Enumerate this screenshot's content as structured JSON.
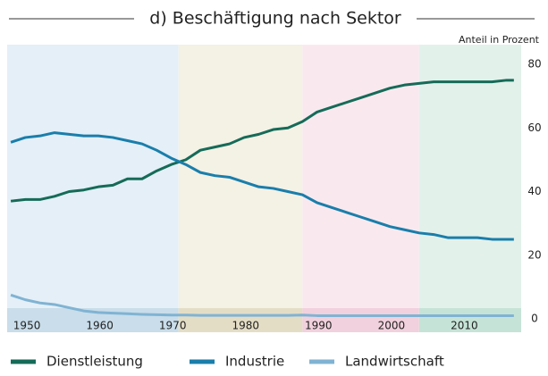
{
  "chart_data": {
    "type": "line",
    "title": "d) Beschäftigung nach Sektor",
    "y_axis_label": "Anteil in Prozent",
    "x": [
      1950,
      1952,
      1954,
      1956,
      1958,
      1960,
      1962,
      1964,
      1966,
      1968,
      1970,
      1972,
      1974,
      1976,
      1978,
      1980,
      1982,
      1984,
      1986,
      1988,
      1990,
      1992,
      1994,
      1996,
      1998,
      2000,
      2002,
      2004,
      2006,
      2008,
      2010,
      2012,
      2014,
      2016,
      2018,
      2019
    ],
    "series": [
      {
        "name": "Dienstleistung",
        "color": "#156b58",
        "values": [
          37,
          37.5,
          37.5,
          38.5,
          40,
          40.5,
          41.5,
          42,
          44,
          44,
          46.5,
          48.5,
          50,
          53,
          54,
          55,
          57,
          58,
          59.5,
          60,
          62,
          65,
          66.5,
          68,
          69.5,
          71,
          72.5,
          73.5,
          74,
          74.5,
          74.5,
          74.5,
          74.5,
          74.5,
          75,
          75
        ]
      },
      {
        "name": "Industrie",
        "color": "#1a7eab",
        "values": [
          55.5,
          57,
          57.5,
          58.5,
          58,
          57.5,
          57.5,
          57,
          56,
          55,
          53,
          50.5,
          48.5,
          46,
          45,
          44.5,
          43,
          41.5,
          41,
          40,
          39,
          36.5,
          35,
          33.5,
          32,
          30.5,
          29,
          28,
          27,
          26.5,
          25.5,
          25.5,
          25.5,
          25,
          25,
          25
        ]
      },
      {
        "name": "Landwirtschaft",
        "color": "#80b3d3",
        "values": [
          7.5,
          6,
          5,
          4.5,
          3.5,
          2.5,
          2,
          1.8,
          1.6,
          1.4,
          1.3,
          1.2,
          1.2,
          1.1,
          1.1,
          1.1,
          1.1,
          1.1,
          1.1,
          1.1,
          1.2,
          1,
          1,
          1,
          1,
          1,
          1,
          1,
          1,
          1,
          1,
          1,
          1,
          1,
          1,
          1
        ]
      }
    ],
    "xlim": [
      1949.5,
      2020
    ],
    "xticks": [
      1950,
      1960,
      1970,
      1980,
      1990,
      2000,
      2010
    ],
    "ylim": [
      0,
      80
    ],
    "yticks": [
      0,
      20,
      40,
      60,
      80
    ],
    "shaded_periods": [
      {
        "start": 1949.5,
        "end": 1973,
        "color": "#e4eff7",
        "strip_color": "#c9ddea"
      },
      {
        "start": 1973,
        "end": 1990,
        "color": "#f4f1e5",
        "strip_color": "#e4ddc6"
      },
      {
        "start": 1990,
        "end": 2006,
        "color": "#f9e9ef",
        "strip_color": "#f1d1dd"
      },
      {
        "start": 2006,
        "end": 2020,
        "color": "#e3f1eb",
        "strip_color": "#c6e3d7"
      }
    ]
  }
}
